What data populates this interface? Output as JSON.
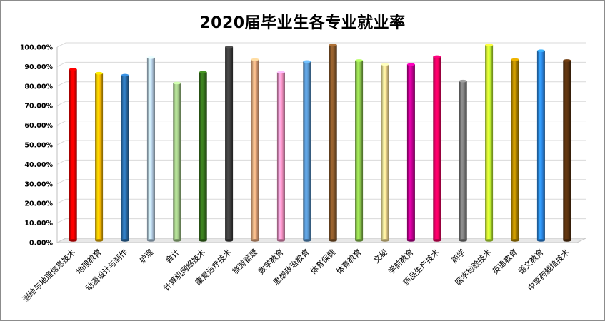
{
  "chart_data": {
    "type": "bar",
    "title": "2020届毕业生各专业就业率",
    "categories": [
      "测绘与地理信息技术",
      "地理教育",
      "动漫设计与制作",
      "护理",
      "会计",
      "计算机网络技术",
      "康复治疗技术",
      "旅游管理",
      "数学教育",
      "思想政治教育",
      "体育保健",
      "体育教育",
      "文秘",
      "学前教育",
      "药品生产技术",
      "药学",
      "医学检验技术",
      "英语教育",
      "语文教育",
      "中草药栽培技术"
    ],
    "values": [
      87.5,
      85.5,
      84.5,
      93.5,
      80.5,
      86.0,
      99.0,
      92.5,
      86.0,
      91.5,
      100.0,
      92.0,
      90.0,
      90.0,
      94.0,
      81.5,
      100.0,
      92.5,
      97.0,
      92.0
    ],
    "ylim": [
      0,
      100
    ],
    "yticks": [
      "0.00%",
      "10.00%",
      "20.00%",
      "30.00%",
      "40.00%",
      "50.00%",
      "60.00%",
      "70.00%",
      "80.00%",
      "90.00%",
      "100.00%"
    ],
    "grid": true,
    "legend": "none",
    "colors": [
      "#ff0000",
      "#ffc000",
      "#2e75b6",
      "#bdd7ee",
      "#a9d18e",
      "#38761d",
      "#404040",
      "#f4b183",
      "#ff99cc",
      "#5b9bd5",
      "#8b5a2b",
      "#92d050",
      "#ffe699",
      "#cc0099",
      "#ff0066",
      "#7f7f7f",
      "#ccff33",
      "#bf9000",
      "#2e8ff0",
      "#5c3310"
    ]
  }
}
